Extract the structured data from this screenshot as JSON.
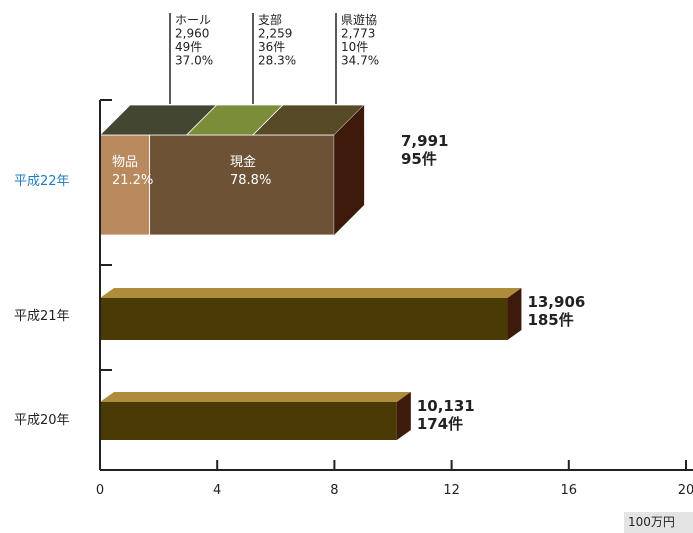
{
  "chart_data": {
    "type": "bar",
    "orientation": "horizontal",
    "categories": [
      "平成22年",
      "平成21年",
      "平成20年"
    ],
    "values": [
      7.991,
      13.906,
      10.131
    ],
    "value_labels": [
      "7,991",
      "13,906",
      "10,131"
    ],
    "count_labels": [
      "95件",
      "185件",
      "174件"
    ],
    "xlim": [
      0,
      20
    ],
    "x_ticks": [
      "0",
      "4",
      "8",
      "12",
      "16",
      "20"
    ],
    "unit": "100万円",
    "highlight_category": "平成22年",
    "breakdown_type": {
      "category": "平成22年",
      "segments": [
        {
          "name": "物品",
          "percent": "21.2%",
          "share": 0.212,
          "color": "#b98a5e"
        },
        {
          "name": "現金",
          "percent": "78.8%",
          "share": 0.788,
          "color": "#6e5236"
        }
      ]
    },
    "breakdown_source": {
      "category": "平成22年",
      "segments": [
        {
          "name": "ホール",
          "amount": "2,960",
          "count": "49件",
          "percent": "37.0%",
          "share": 0.37,
          "color": "#434630"
        },
        {
          "name": "支部",
          "amount": "2,259",
          "count": "36件",
          "percent": "28.3%",
          "share": 0.283,
          "color": "#7b8d38"
        },
        {
          "name": "県遊協",
          "amount": "2,773",
          "count": "10件",
          "percent": "34.7%",
          "share": 0.347,
          "color": "#574a26"
        }
      ]
    },
    "colors": {
      "bar_front": "#4a3a06",
      "bar_top": "#ae8c3c",
      "bar_side": "#3e1a0a",
      "highlight_label": "#1e7cc0",
      "axis": "#222222"
    },
    "grid": false
  }
}
